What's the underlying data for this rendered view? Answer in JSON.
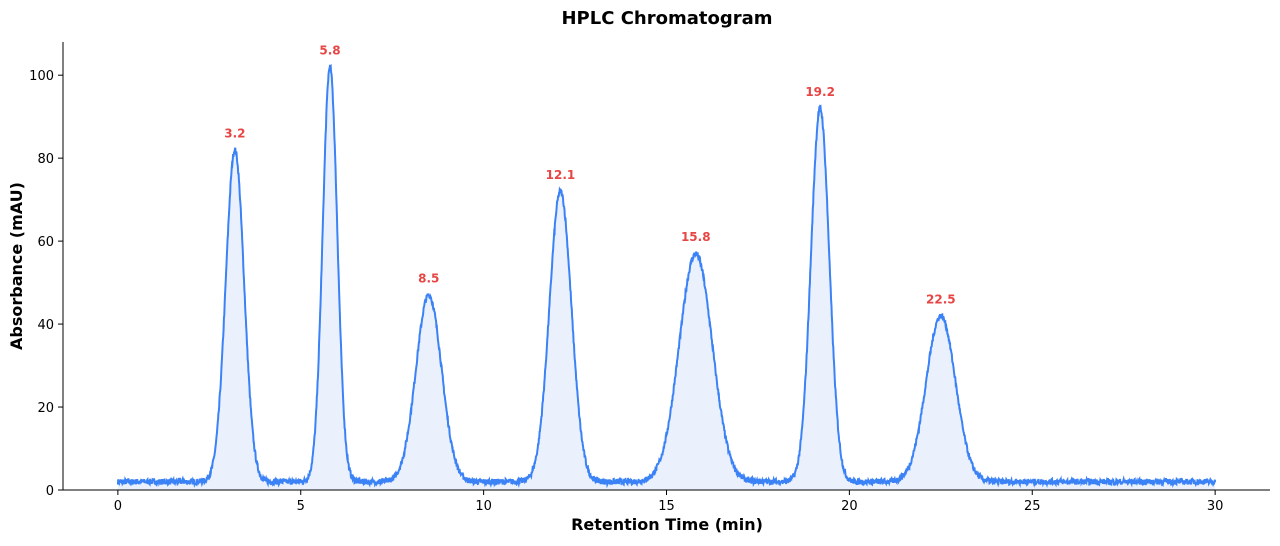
{
  "chart_data": {
    "type": "line",
    "title": "HPLC Chromatogram",
    "xlabel": "Retention Time (min)",
    "ylabel": "Absorbance (mAU)",
    "xlim": [
      -1.5,
      31.5
    ],
    "ylim": [
      0,
      108
    ],
    "x_ticks": [
      0,
      5,
      10,
      15,
      20,
      25,
      30
    ],
    "y_ticks": [
      0,
      20,
      40,
      60,
      80,
      100
    ],
    "grid": false,
    "baseline": 2,
    "x_range": [
      0,
      30
    ],
    "filled": true,
    "peaks": [
      {
        "label": "3.2",
        "time": 3.2,
        "height": 80,
        "sigma": 0.25
      },
      {
        "label": "5.8",
        "time": 5.8,
        "height": 100,
        "sigma": 0.2
      },
      {
        "label": "8.5",
        "time": 8.5,
        "height": 45,
        "sigma": 0.35
      },
      {
        "label": "12.1",
        "time": 12.1,
        "height": 70,
        "sigma": 0.3
      },
      {
        "label": "15.8",
        "time": 15.8,
        "height": 55,
        "sigma": 0.45
      },
      {
        "label": "19.2",
        "time": 19.2,
        "height": 90,
        "sigma": 0.25
      },
      {
        "label": "22.5",
        "time": 22.5,
        "height": 40,
        "sigma": 0.4
      }
    ],
    "colors": {
      "line": "#3b82f6",
      "fill": "#eaf1fd",
      "peak_label": "#e84545"
    }
  }
}
